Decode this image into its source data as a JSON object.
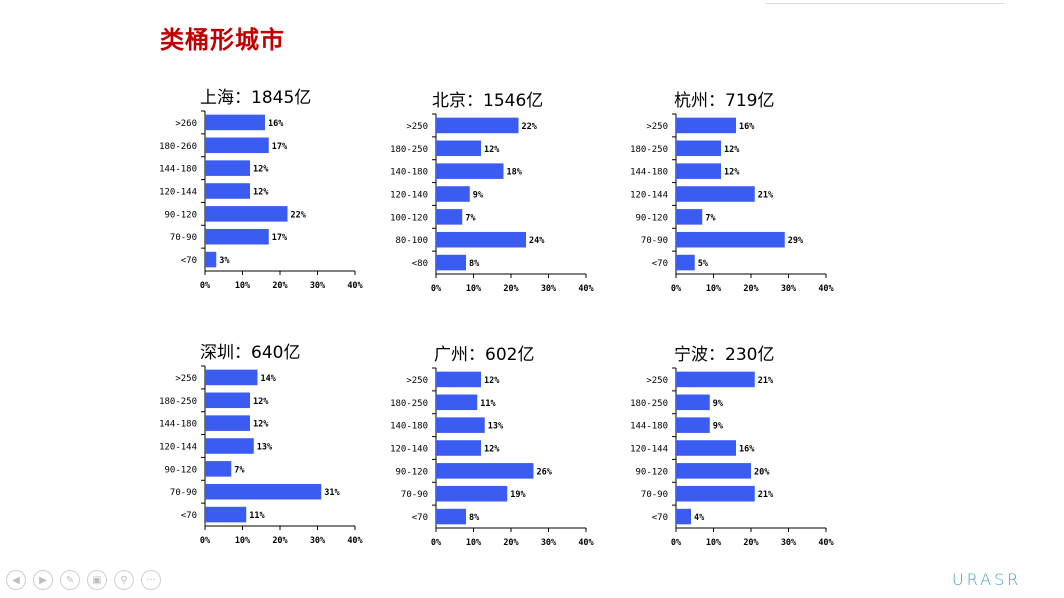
{
  "page": {
    "title": "类桶形城市",
    "brand": "URASR"
  },
  "colors": {
    "bar": "#3a5cf0",
    "title": "#c00000",
    "axis": "#000000"
  },
  "nav": {
    "icons": [
      "prev-icon",
      "next-icon",
      "pen-icon",
      "slides-icon",
      "zoom-icon",
      "more-icon"
    ]
  },
  "chart_data": [
    {
      "type": "bar",
      "orientation": "horizontal",
      "title": "上海：1845亿",
      "categories": [
        ">260",
        "180-260",
        "144-180",
        "120-144",
        "90-120",
        "70-90",
        "<70"
      ],
      "values": [
        16,
        17,
        12,
        12,
        22,
        17,
        3
      ],
      "value_labels": [
        "16%",
        "17%",
        "12%",
        "12%",
        "22%",
        "17%",
        "3%"
      ],
      "xlim": [
        0,
        40
      ],
      "xticks": [
        "0%",
        "10%",
        "20%",
        "30%",
        "40%"
      ]
    },
    {
      "type": "bar",
      "orientation": "horizontal",
      "title": "北京：1546亿",
      "categories": [
        ">250",
        "180-250",
        "140-180",
        "120-140",
        "100-120",
        "80-100",
        "<80"
      ],
      "values": [
        22,
        12,
        18,
        9,
        7,
        24,
        8
      ],
      "value_labels": [
        "22%",
        "12%",
        "18%",
        "9%",
        "7%",
        "24%",
        "8%"
      ],
      "xlim": [
        0,
        40
      ],
      "xticks": [
        "0%",
        "10%",
        "20%",
        "30%",
        "40%"
      ]
    },
    {
      "type": "bar",
      "orientation": "horizontal",
      "title": "杭州：719亿",
      "categories": [
        ">250",
        "180-250",
        "144-180",
        "120-144",
        "90-120",
        "70-90",
        "<70"
      ],
      "values": [
        16,
        12,
        12,
        21,
        7,
        29,
        5
      ],
      "value_labels": [
        "16%",
        "12%",
        "12%",
        "21%",
        "7%",
        "29%",
        "5%"
      ],
      "xlim": [
        0,
        40
      ],
      "xticks": [
        "0%",
        "10%",
        "20%",
        "30%",
        "40%"
      ]
    },
    {
      "type": "bar",
      "orientation": "horizontal",
      "title": "深圳：640亿",
      "categories": [
        ">250",
        "180-250",
        "144-180",
        "120-144",
        "90-120",
        "70-90",
        "<70"
      ],
      "values": [
        14,
        12,
        12,
        13,
        7,
        31,
        11
      ],
      "value_labels": [
        "14%",
        "12%",
        "12%",
        "13%",
        "7%",
        "31%",
        "11%"
      ],
      "xlim": [
        0,
        40
      ],
      "xticks": [
        "0%",
        "10%",
        "20%",
        "30%",
        "40%"
      ]
    },
    {
      "type": "bar",
      "orientation": "horizontal",
      "title": "广州：602亿",
      "categories": [
        ">250",
        "180-250",
        "140-180",
        "120-140",
        "90-120",
        "70-90",
        "<70"
      ],
      "values": [
        12,
        11,
        13,
        12,
        26,
        19,
        8
      ],
      "value_labels": [
        "12%",
        "11%",
        "13%",
        "12%",
        "26%",
        "19%",
        "8%"
      ],
      "xlim": [
        0,
        40
      ],
      "xticks": [
        "0%",
        "10%",
        "20%",
        "30%",
        "40%"
      ]
    },
    {
      "type": "bar",
      "orientation": "horizontal",
      "title": "宁波：230亿",
      "categories": [
        ">250",
        "180-250",
        "144-180",
        "120-144",
        "90-120",
        "70-90",
        "<70"
      ],
      "values": [
        21,
        9,
        9,
        16,
        20,
        21,
        4
      ],
      "value_labels": [
        "21%",
        "9%",
        "9%",
        "16%",
        "20%",
        "21%",
        "4%"
      ],
      "xlim": [
        0,
        40
      ],
      "xticks": [
        "0%",
        "10%",
        "20%",
        "30%",
        "40%"
      ]
    }
  ]
}
